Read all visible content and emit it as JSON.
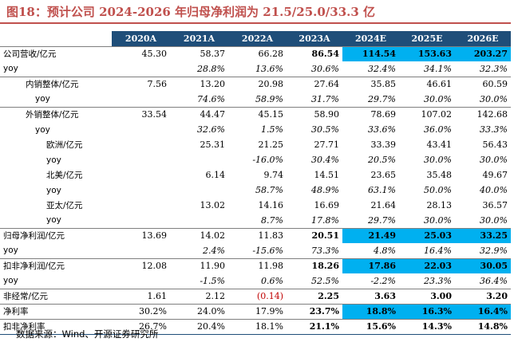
{
  "title": "图18：预计公司 2024-2026 年归母净利润为 21.5/25.0/33.3 亿",
  "headers": [
    "",
    "2020A",
    "2021A",
    "2022A",
    "2023A",
    "2024E",
    "2025E",
    "2026E"
  ],
  "rows": [
    {
      "label": "公司营收/亿元",
      "values": [
        "45.30",
        "58.37",
        "66.28",
        "86.54",
        "114.54",
        "153.63",
        "203.27"
      ]
    },
    {
      "label": "yoy",
      "values": [
        "",
        "28.8%",
        "13.6%",
        "30.6%",
        "32.4%",
        "34.1%",
        "32.3%"
      ]
    },
    {
      "label": "内销整体/亿元",
      "values": [
        "7.56",
        "13.20",
        "20.98",
        "27.64",
        "35.85",
        "46.61",
        "60.59"
      ]
    },
    {
      "label": "yoy",
      "values": [
        "",
        "74.6%",
        "58.9%",
        "31.7%",
        "29.7%",
        "30.0%",
        "30.0%"
      ]
    },
    {
      "label": "外销整体/亿元",
      "values": [
        "33.54",
        "44.47",
        "45.15",
        "58.90",
        "78.69",
        "107.02",
        "142.68"
      ]
    },
    {
      "label": "yoy",
      "values": [
        "",
        "32.6%",
        "1.5%",
        "30.5%",
        "33.6%",
        "36.0%",
        "33.3%"
      ]
    },
    {
      "label": "欧洲/亿元",
      "values": [
        "",
        "25.31",
        "21.25",
        "27.71",
        "33.39",
        "43.41",
        "56.43"
      ]
    },
    {
      "label": "yoy",
      "values": [
        "",
        "",
        "-16.0%",
        "30.4%",
        "20.5%",
        "30.0%",
        "30.0%"
      ]
    },
    {
      "label": "北美/亿元",
      "values": [
        "",
        "6.14",
        "9.74",
        "14.51",
        "23.65",
        "35.48",
        "49.67"
      ]
    },
    {
      "label": "yoy",
      "values": [
        "",
        "",
        "58.7%",
        "48.9%",
        "63.1%",
        "50.0%",
        "40.0%"
      ]
    },
    {
      "label": "亚太/亿元",
      "values": [
        "",
        "13.02",
        "14.16",
        "16.69",
        "21.64",
        "28.13",
        "36.57"
      ]
    },
    {
      "label": "yoy",
      "values": [
        "",
        "",
        "8.7%",
        "17.8%",
        "29.7%",
        "30.0%",
        "30.0%"
      ]
    },
    {
      "label": "归母净利润/亿元",
      "values": [
        "13.69",
        "14.02",
        "11.83",
        "20.51",
        "21.49",
        "25.03",
        "33.25"
      ]
    },
    {
      "label": "yoy",
      "values": [
        "",
        "2.4%",
        "-15.6%",
        "73.3%",
        "4.8%",
        "16.4%",
        "32.9%"
      ]
    },
    {
      "label": "扣非净利润/亿元",
      "values": [
        "12.08",
        "11.90",
        "11.98",
        "18.26",
        "17.86",
        "22.03",
        "30.05"
      ]
    },
    {
      "label": "yoy",
      "values": [
        "",
        "-1.5%",
        "0.6%",
        "52.5%",
        "-2.2%",
        "23.3%",
        "36.4%"
      ]
    },
    {
      "label": "非经常/亿元",
      "values": [
        "1.61",
        "2.12",
        "(0.14)",
        "2.25",
        "3.63",
        "3.00",
        "3.20"
      ]
    },
    {
      "label": "净利率",
      "values": [
        "30.2%",
        "24.0%",
        "17.9%",
        "23.7%",
        "18.8%",
        "16.3%",
        "16.4%"
      ]
    },
    {
      "label": "扣非净利率",
      "values": [
        "26.7%",
        "20.4%",
        "18.1%",
        "21.1%",
        "15.6%",
        "14.3%",
        "14.8%"
      ]
    }
  ],
  "footer": "数据来源：Wind、开源证券研究所",
  "colors": {
    "title": "#c0504d",
    "header_bg": "#1f4e79",
    "highlight": "#00b0f0",
    "negative": "#c00000"
  }
}
